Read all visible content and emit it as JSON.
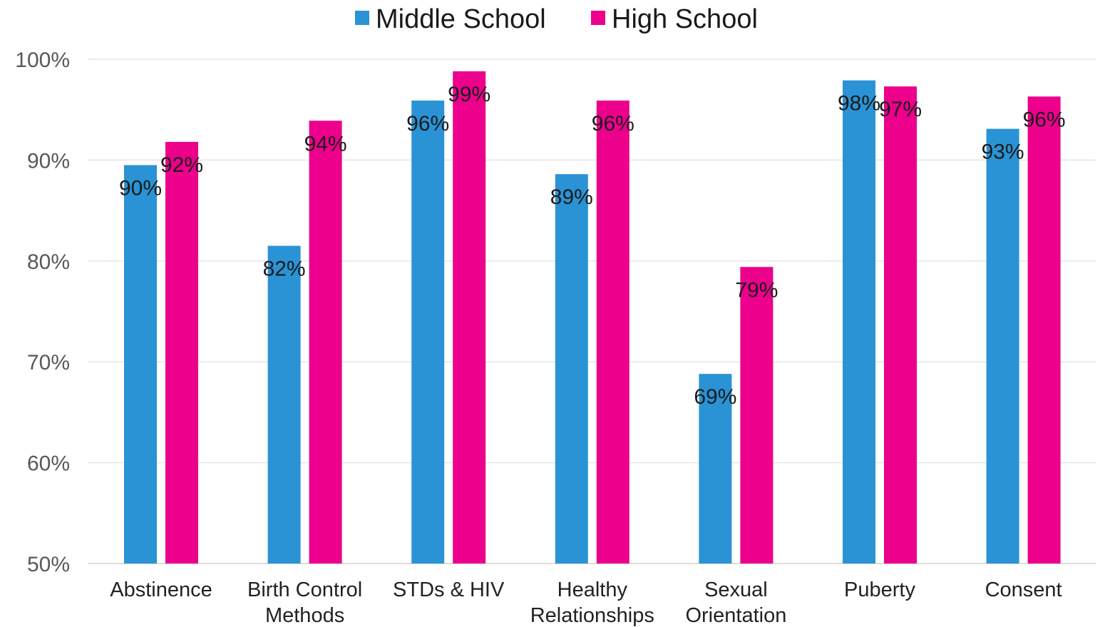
{
  "chart_data": {
    "type": "bar",
    "categories": [
      [
        "Abstinence"
      ],
      [
        "Birth Control",
        "Methods"
      ],
      [
        "STDs & HIV"
      ],
      [
        "Healthy",
        "Relationships"
      ],
      [
        "Sexual",
        "Orientation"
      ],
      [
        "Puberty"
      ],
      [
        "Consent"
      ]
    ],
    "series": [
      {
        "name": "Middle School",
        "color": "#2a93d5",
        "values": [
          89.5,
          81.5,
          95.9,
          88.6,
          68.8,
          97.9,
          93.1
        ],
        "labels": [
          "90%",
          "82%",
          "96%",
          "89%",
          "69%",
          "98%",
          "93%"
        ]
      },
      {
        "name": "High School",
        "color": "#ec008c",
        "values": [
          91.8,
          93.9,
          98.8,
          95.9,
          79.4,
          97.3,
          96.3
        ],
        "labels": [
          "92%",
          "94%",
          "99%",
          "96%",
          "79%",
          "97%",
          "96%"
        ]
      }
    ],
    "ylim": [
      50,
      100
    ],
    "yticks": [
      "50%",
      "60%",
      "70%",
      "80%",
      "90%",
      "100%"
    ],
    "grid": true,
    "legend_position": "top-center"
  }
}
